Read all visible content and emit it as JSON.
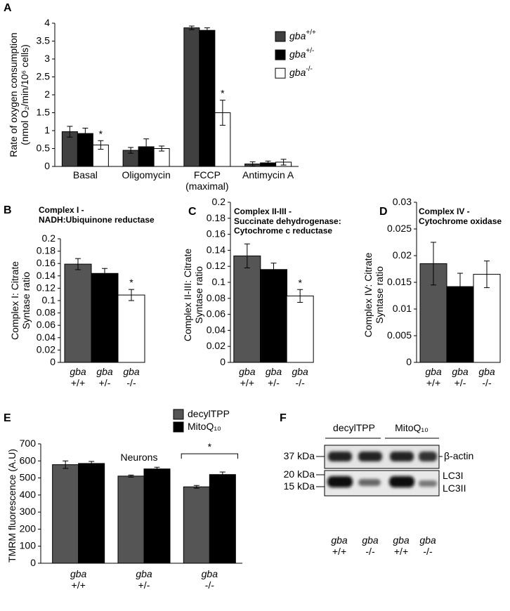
{
  "chart_data": [
    {
      "type": "bar",
      "label": "A",
      "ylabel": "Rate of oxygen consumption\n(nmol O₂/min/10⁶ cells)",
      "categories": [
        "Basal",
        "Oligomycin",
        "FCCP\n(maximal)",
        "Antimycin A"
      ],
      "series": [
        {
          "name": "gba+/+",
          "color": "#404040",
          "values": [
            0.97,
            0.45,
            3.87,
            0.07
          ],
          "errors": [
            0.15,
            0.08,
            0.05,
            0.06
          ]
        },
        {
          "name": "gba+/-",
          "color": "#000000",
          "values": [
            0.92,
            0.55,
            3.8,
            0.1
          ],
          "errors": [
            0.15,
            0.22,
            0.07,
            0.05
          ]
        },
        {
          "name": "gba-/-",
          "color": "#ffffff",
          "values": [
            0.6,
            0.5,
            1.5,
            0.12
          ],
          "errors": [
            0.12,
            0.07,
            0.35,
            0.08
          ],
          "annotations": [
            "*",
            null,
            "*",
            null
          ]
        }
      ],
      "ylim": [
        0,
        4
      ],
      "yticks": [
        0,
        0.5,
        1,
        1.5,
        2,
        2.5,
        3,
        3.5,
        4
      ]
    },
    {
      "type": "bar",
      "label": "B",
      "title": "Complex I -\nNADH:Ubiquinone reductase",
      "ylabel": "Complex I: Citrate\nSyntase ratio",
      "categories": [
        "gba\n+/+",
        "gba\n+/-",
        "gba\n-/-"
      ],
      "values": [
        0.159,
        0.144,
        0.109
      ],
      "errors": [
        0.009,
        0.008,
        0.009
      ],
      "colors": [
        "#555555",
        "#000000",
        "#ffffff"
      ],
      "annotations": [
        null,
        null,
        "*"
      ],
      "ylim": [
        0,
        0.2
      ],
      "yticks": [
        0,
        0.02,
        0.04,
        0.06,
        0.08,
        0.1,
        0.12,
        0.14,
        0.16,
        0.18,
        0.2
      ]
    },
    {
      "type": "bar",
      "label": "C",
      "title": "Complex II-III -\nSuccinate dehydrogenase:\nCytochrome c reductase",
      "ylabel": "Complex II-III: Citrate\nSyntase ratio",
      "categories": [
        "gba\n+/+",
        "gba\n+/-",
        "gba\n-/-"
      ],
      "values": [
        0.133,
        0.116,
        0.083
      ],
      "errors": [
        0.015,
        0.008,
        0.008
      ],
      "colors": [
        "#555555",
        "#000000",
        "#ffffff"
      ],
      "annotations": [
        null,
        null,
        "*"
      ],
      "ylim": [
        0,
        0.2
      ],
      "yticks": [
        0,
        0.02,
        0.04,
        0.06,
        0.08,
        0.1,
        0.12,
        0.14,
        0.16,
        0.18,
        0.2
      ]
    },
    {
      "type": "bar",
      "label": "D",
      "title": "Complex IV -\nCytochrome oxidase",
      "ylabel": "Complex IV: Citrate\nSyntase ratio",
      "categories": [
        "gba\n+/+",
        "gba\n+/-",
        "gba\n-/-"
      ],
      "values": [
        0.0185,
        0.0142,
        0.0165
      ],
      "errors": [
        0.004,
        0.0025,
        0.0025
      ],
      "colors": [
        "#555555",
        "#000000",
        "#ffffff"
      ],
      "ylim": [
        0,
        0.03
      ],
      "yticks": [
        0,
        0.005,
        0.01,
        0.015,
        0.02,
        0.025,
        0.03
      ]
    },
    {
      "type": "bar",
      "label": "E",
      "title": "Neurons",
      "ylabel": "TMRM fluorescence (A.U)",
      "categories": [
        "gba\n+/+",
        "gba\n+/-",
        "gba\n-/-"
      ],
      "series": [
        {
          "name": "decylTPP",
          "color": "#555555",
          "values": [
            578,
            511,
            448
          ],
          "errors": [
            22,
            6,
            8
          ]
        },
        {
          "name": "MitoQ₁₀",
          "color": "#000000",
          "values": [
            585,
            553,
            520
          ],
          "errors": [
            12,
            10,
            15
          ]
        }
      ],
      "annotations": [
        null,
        null,
        "*"
      ],
      "ylim": [
        0,
        700
      ],
      "yticks": [
        0,
        100,
        200,
        300,
        400,
        500,
        600,
        700
      ]
    }
  ],
  "blot": {
    "label": "F",
    "groups": [
      "decylTPP",
      "MitoQ₁₀"
    ],
    "markers": [
      "37 kDa",
      "20 kDa",
      "15 kDa"
    ],
    "bands": [
      "β-actin",
      "LC3I",
      "LC3II"
    ],
    "lanes": [
      "gba\n+/+",
      "gba\n-/-",
      "gba\n+/+",
      "gba\n-/-"
    ]
  }
}
